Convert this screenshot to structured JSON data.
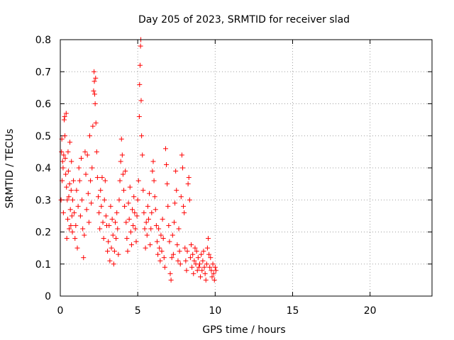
{
  "chart_data": {
    "type": "scatter",
    "title": "Day 205 of 2023, SRMTID for receiver slad",
    "xlabel": "GPS time / hours",
    "ylabel": "SRMTID / TECUs",
    "xlim": [
      0,
      24
    ],
    "ylim": [
      0,
      0.8
    ],
    "xticks": [
      0,
      5,
      10,
      15,
      20
    ],
    "xtick_labels": [
      "0",
      "5",
      "10",
      "15",
      "20"
    ],
    "yticks": [
      0,
      0.1,
      0.2,
      0.3,
      0.4,
      0.5,
      0.6,
      0.7,
      0.8
    ],
    "ytick_labels": [
      "0",
      "0.1",
      "0.2",
      "0.3",
      "0.4",
      "0.5",
      "0.6",
      "0.7",
      "0.8"
    ],
    "grid": true,
    "marker": "+",
    "marker_color": "#ff0000",
    "series": [
      {
        "name": "SRMTID",
        "points": [
          [
            0.05,
            0.3
          ],
          [
            0.08,
            0.45
          ],
          [
            0.1,
            0.49
          ],
          [
            0.12,
            0.36
          ],
          [
            0.15,
            0.42
          ],
          [
            0.18,
            0.4
          ],
          [
            0.2,
            0.26
          ],
          [
            0.22,
            0.44
          ],
          [
            0.25,
            0.55
          ],
          [
            0.28,
            0.56
          ],
          [
            0.3,
            0.5
          ],
          [
            0.32,
            0.43
          ],
          [
            0.35,
            0.38
          ],
          [
            0.38,
            0.57
          ],
          [
            0.4,
            0.34
          ],
          [
            0.42,
            0.18
          ],
          [
            0.45,
            0.3
          ],
          [
            0.48,
            0.24
          ],
          [
            0.5,
            0.45
          ],
          [
            0.52,
            0.39
          ],
          [
            0.55,
            0.31
          ],
          [
            0.58,
            0.21
          ],
          [
            0.6,
            0.35
          ],
          [
            0.62,
            0.48
          ],
          [
            0.65,
            0.27
          ],
          [
            0.68,
            0.22
          ],
          [
            0.7,
            0.33
          ],
          [
            0.72,
            0.42
          ],
          [
            0.75,
            0.25
          ],
          [
            0.78,
            0.2
          ],
          [
            0.8,
            0.3
          ],
          [
            0.85,
            0.36
          ],
          [
            0.9,
            0.26
          ],
          [
            0.95,
            0.18
          ],
          [
            1.0,
            0.22
          ],
          [
            1.05,
            0.33
          ],
          [
            1.1,
            0.15
          ],
          [
            1.15,
            0.28
          ],
          [
            1.2,
            0.4
          ],
          [
            1.25,
            0.36
          ],
          [
            1.3,
            0.25
          ],
          [
            1.35,
            0.43
          ],
          [
            1.4,
            0.3
          ],
          [
            1.45,
            0.21
          ],
          [
            1.5,
            0.12
          ],
          [
            1.55,
            0.19
          ],
          [
            1.6,
            0.45
          ],
          [
            1.65,
            0.38
          ],
          [
            1.7,
            0.27
          ],
          [
            1.75,
            0.44
          ],
          [
            1.8,
            0.32
          ],
          [
            1.85,
            0.23
          ],
          [
            1.9,
            0.5
          ],
          [
            1.95,
            0.36
          ],
          [
            2.0,
            0.29
          ],
          [
            2.05,
            0.4
          ],
          [
            2.1,
            0.53
          ],
          [
            2.15,
            0.64
          ],
          [
            2.18,
            0.7
          ],
          [
            2.2,
            0.67
          ],
          [
            2.22,
            0.63
          ],
          [
            2.25,
            0.6
          ],
          [
            2.28,
            0.68
          ],
          [
            2.3,
            0.54
          ],
          [
            2.35,
            0.45
          ],
          [
            2.4,
            0.37
          ],
          [
            2.45,
            0.31
          ],
          [
            2.5,
            0.26
          ],
          [
            2.55,
            0.21
          ],
          [
            2.6,
            0.33
          ],
          [
            2.65,
            0.28
          ],
          [
            2.7,
            0.37
          ],
          [
            2.75,
            0.23
          ],
          [
            2.8,
            0.18
          ],
          [
            2.85,
            0.3
          ],
          [
            2.9,
            0.36
          ],
          [
            2.95,
            0.25
          ],
          [
            3.0,
            0.22
          ],
          [
            3.05,
            0.14
          ],
          [
            3.1,
            0.17
          ],
          [
            3.15,
            0.22
          ],
          [
            3.2,
            0.11
          ],
          [
            3.25,
            0.28
          ],
          [
            3.3,
            0.15
          ],
          [
            3.35,
            0.24
          ],
          [
            3.4,
            0.19
          ],
          [
            3.45,
            0.1
          ],
          [
            3.5,
            0.14
          ],
          [
            3.55,
            0.23
          ],
          [
            3.6,
            0.18
          ],
          [
            3.65,
            0.26
          ],
          [
            3.7,
            0.21
          ],
          [
            3.75,
            0.13
          ],
          [
            3.8,
            0.3
          ],
          [
            3.85,
            0.36
          ],
          [
            3.9,
            0.42
          ],
          [
            3.95,
            0.49
          ],
          [
            4.0,
            0.44
          ],
          [
            4.05,
            0.38
          ],
          [
            4.1,
            0.33
          ],
          [
            4.15,
            0.28
          ],
          [
            4.2,
            0.39
          ],
          [
            4.25,
            0.23
          ],
          [
            4.3,
            0.18
          ],
          [
            4.35,
            0.14
          ],
          [
            4.4,
            0.29
          ],
          [
            4.45,
            0.24
          ],
          [
            4.5,
            0.34
          ],
          [
            4.55,
            0.2
          ],
          [
            4.6,
            0.16
          ],
          [
            4.65,
            0.27
          ],
          [
            4.7,
            0.22
          ],
          [
            4.75,
            0.31
          ],
          [
            4.8,
            0.26
          ],
          [
            4.85,
            0.21
          ],
          [
            4.9,
            0.17
          ],
          [
            4.95,
            0.25
          ],
          [
            5.0,
            0.3
          ],
          [
            5.05,
            0.36
          ],
          [
            5.1,
            0.56
          ],
          [
            5.12,
            0.66
          ],
          [
            5.15,
            0.72
          ],
          [
            5.18,
            0.78
          ],
          [
            5.2,
            0.8
          ],
          [
            5.22,
            0.61
          ],
          [
            5.25,
            0.5
          ],
          [
            5.3,
            0.44
          ],
          [
            5.35,
            0.33
          ],
          [
            5.4,
            0.26
          ],
          [
            5.45,
            0.21
          ],
          [
            5.5,
            0.15
          ],
          [
            5.55,
            0.23
          ],
          [
            5.6,
            0.19
          ],
          [
            5.65,
            0.28
          ],
          [
            5.7,
            0.24
          ],
          [
            5.75,
            0.32
          ],
          [
            5.8,
            0.16
          ],
          [
            5.85,
            0.21
          ],
          [
            5.9,
            0.26
          ],
          [
            5.95,
            0.39
          ],
          [
            6.0,
            0.42
          ],
          [
            6.05,
            0.36
          ],
          [
            6.1,
            0.31
          ],
          [
            6.15,
            0.27
          ],
          [
            6.2,
            0.22
          ],
          [
            6.25,
            0.17
          ],
          [
            6.3,
            0.13
          ],
          [
            6.35,
            0.21
          ],
          [
            6.4,
            0.15
          ],
          [
            6.45,
            0.11
          ],
          [
            6.5,
            0.19
          ],
          [
            6.55,
            0.14
          ],
          [
            6.6,
            0.24
          ],
          [
            6.65,
            0.18
          ],
          [
            6.7,
            0.12
          ],
          [
            6.75,
            0.09
          ],
          [
            6.8,
            0.46
          ],
          [
            6.85,
            0.41
          ],
          [
            6.9,
            0.35
          ],
          [
            6.95,
            0.28
          ],
          [
            7.0,
            0.22
          ],
          [
            7.05,
            0.17
          ],
          [
            7.1,
            0.07
          ],
          [
            7.15,
            0.05
          ],
          [
            7.2,
            0.12
          ],
          [
            7.25,
            0.19
          ],
          [
            7.3,
            0.13
          ],
          [
            7.35,
            0.23
          ],
          [
            7.4,
            0.29
          ],
          [
            7.45,
            0.39
          ],
          [
            7.5,
            0.33
          ],
          [
            7.55,
            0.16
          ],
          [
            7.6,
            0.11
          ],
          [
            7.65,
            0.21
          ],
          [
            7.7,
            0.14
          ],
          [
            7.75,
            0.1
          ],
          [
            7.8,
            0.31
          ],
          [
            7.85,
            0.44
          ],
          [
            7.9,
            0.4
          ],
          [
            7.95,
            0.28
          ],
          [
            8.0,
            0.26
          ],
          [
            8.05,
            0.15
          ],
          [
            8.1,
            0.11
          ],
          [
            8.15,
            0.08
          ],
          [
            8.2,
            0.14
          ],
          [
            8.25,
            0.35
          ],
          [
            8.3,
            0.37
          ],
          [
            8.35,
            0.3
          ],
          [
            8.4,
            0.12
          ],
          [
            8.45,
            0.16
          ],
          [
            8.5,
            0.09
          ],
          [
            8.55,
            0.13
          ],
          [
            8.6,
            0.07
          ],
          [
            8.65,
            0.11
          ],
          [
            8.7,
            0.15
          ],
          [
            8.75,
            0.1
          ],
          [
            8.8,
            0.14
          ],
          [
            8.85,
            0.08
          ],
          [
            8.9,
            0.12
          ],
          [
            8.95,
            0.09
          ],
          [
            9.0,
            0.1
          ],
          [
            9.05,
            0.06
          ],
          [
            9.1,
            0.13
          ],
          [
            9.15,
            0.08
          ],
          [
            9.2,
            0.11
          ],
          [
            9.25,
            0.14
          ],
          [
            9.3,
            0.09
          ],
          [
            9.35,
            0.07
          ],
          [
            9.4,
            0.05
          ],
          [
            9.45,
            0.1
          ],
          [
            9.5,
            0.15
          ],
          [
            9.55,
            0.18
          ],
          [
            9.6,
            0.13
          ],
          [
            9.65,
            0.09
          ],
          [
            9.7,
            0.12
          ],
          [
            9.75,
            0.08
          ],
          [
            9.8,
            0.06
          ],
          [
            9.85,
            0.1
          ],
          [
            9.9,
            0.07
          ],
          [
            9.95,
            0.05
          ],
          [
            10.0,
            0.09
          ],
          [
            10.05,
            0.08
          ]
        ]
      }
    ]
  }
}
